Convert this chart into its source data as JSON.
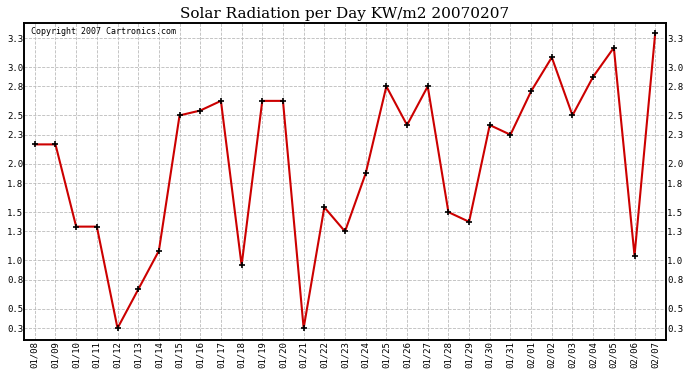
{
  "title": "Solar Radiation per Day KW/m2 20070207",
  "copyright_text": "Copyright 2007 Cartronics.com",
  "labels": [
    "01/08",
    "01/09",
    "01/10",
    "01/11",
    "01/12",
    "01/13",
    "01/14",
    "01/15",
    "01/16",
    "01/17",
    "01/18",
    "01/19",
    "01/20",
    "01/21",
    "01/22",
    "01/23",
    "01/24",
    "01/25",
    "01/26",
    "01/27",
    "01/28",
    "01/29",
    "01/30",
    "01/31",
    "02/01",
    "02/02",
    "02/03",
    "02/04",
    "02/05",
    "02/06",
    "02/07"
  ],
  "values": [
    2.2,
    2.2,
    1.35,
    1.35,
    0.3,
    0.7,
    1.1,
    2.5,
    2.55,
    2.65,
    0.95,
    2.65,
    2.65,
    0.3,
    1.55,
    1.3,
    1.9,
    2.8,
    2.4,
    2.8,
    1.5,
    1.4,
    2.4,
    2.3,
    2.75,
    3.1,
    2.5,
    2.9,
    3.2,
    1.05,
    3.35
  ],
  "line_color": "#cc0000",
  "marker_color": "#000000",
  "bg_color": "#ffffff",
  "plot_bg_color": "#ffffff",
  "grid_color": "#bbbbbb",
  "yticks": [
    0.3,
    0.5,
    0.8,
    1.0,
    1.3,
    1.5,
    1.8,
    2.0,
    2.3,
    2.5,
    2.8,
    3.0,
    3.3
  ],
  "ylim_min": 0.18,
  "ylim_max": 3.45,
  "title_fontsize": 11,
  "copyright_fontsize": 6,
  "tick_fontsize": 6.5,
  "line_width": 1.5,
  "marker_size": 4
}
